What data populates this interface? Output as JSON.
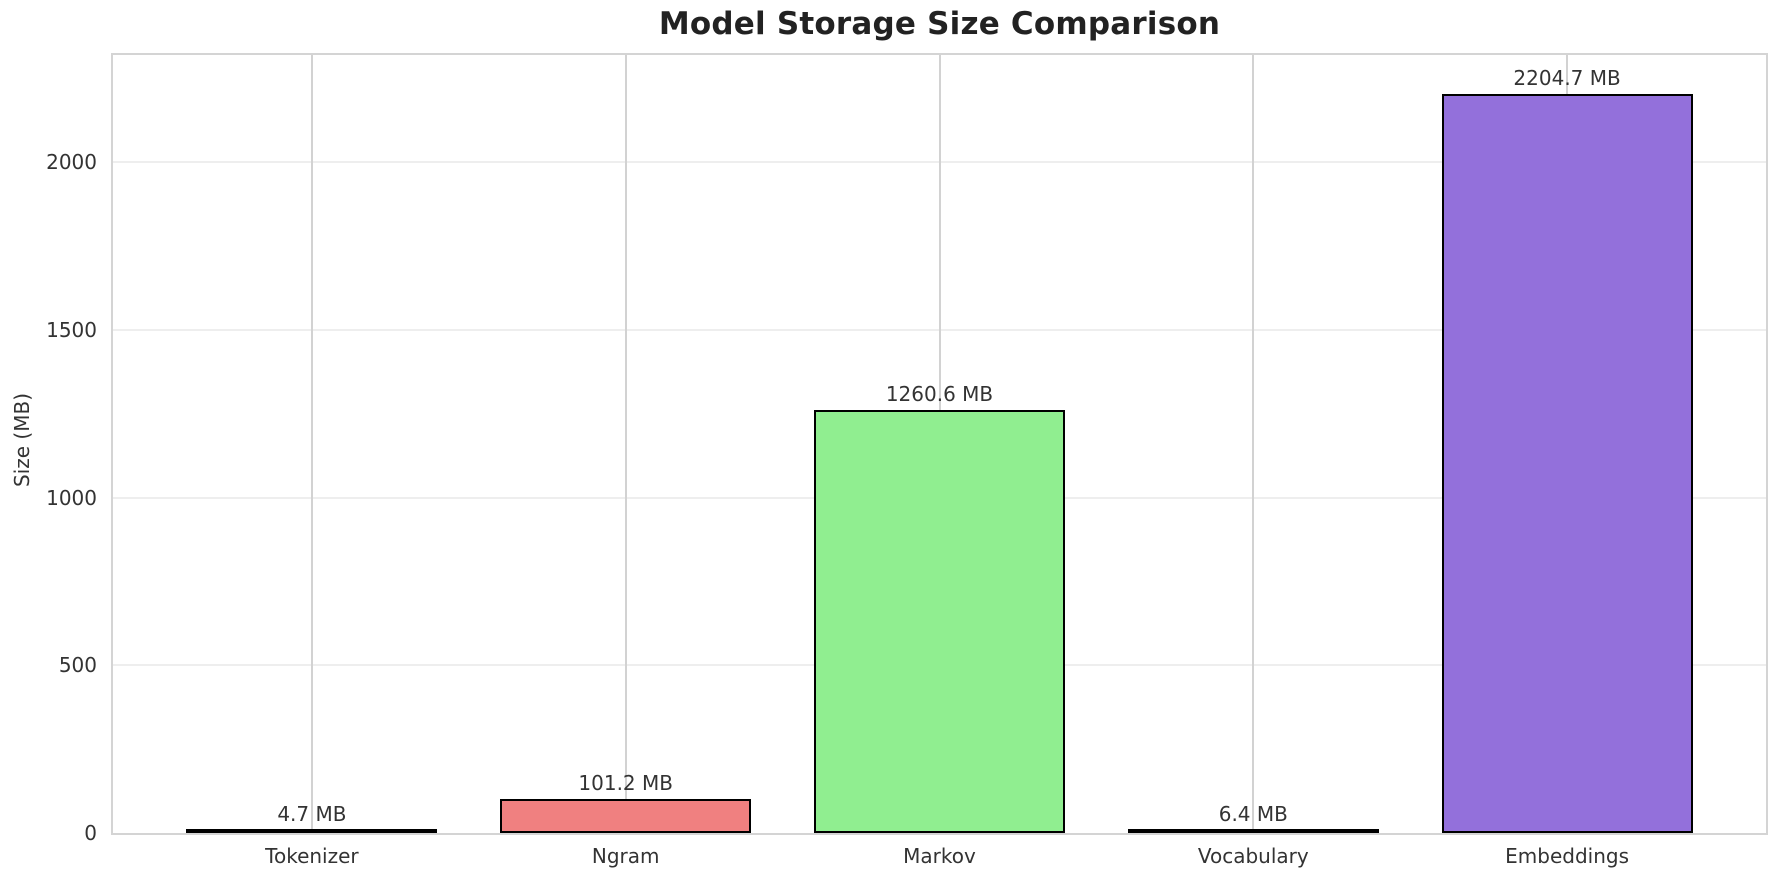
{
  "chart_data": {
    "type": "bar",
    "title": "Model Storage Size Comparison",
    "xlabel": "",
    "ylabel": "Size (MB)",
    "categories": [
      "Tokenizer",
      "Ngram",
      "Markov",
      "Vocabulary",
      "Embeddings"
    ],
    "values": [
      4.7,
      101.2,
      1260.6,
      6.4,
      2204.7
    ],
    "bar_value_labels": [
      "4.7 MB",
      "101.2 MB",
      "1260.6 MB",
      "6.4 MB",
      "2204.7 MB"
    ],
    "bar_colors": [
      "#87ceeb",
      "#f08080",
      "#90ee90",
      "#ffd700",
      "#9370db"
    ],
    "bar_edge_color": "#000000",
    "yticks": [
      0,
      500,
      1000,
      1500,
      2000
    ],
    "ylim": [
      0,
      2320
    ],
    "grid": true,
    "legend_position": "none",
    "style": {
      "background": "#ffffff",
      "spine_color": "#d4d4d4",
      "h_grid_color": "#eeeeee",
      "v_grid_color": "#d2d2d2",
      "tick_text_color": "#333333",
      "title_color": "#222222"
    }
  }
}
